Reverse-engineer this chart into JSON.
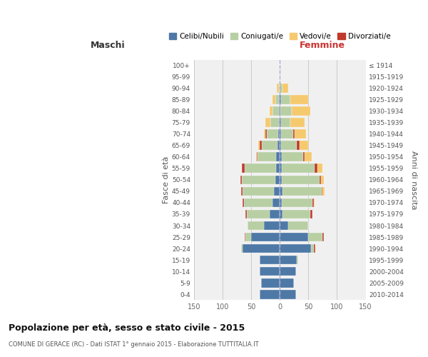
{
  "age_groups": [
    "0-4",
    "5-9",
    "10-14",
    "15-19",
    "20-24",
    "25-29",
    "30-34",
    "35-39",
    "40-44",
    "45-49",
    "50-54",
    "55-59",
    "60-64",
    "65-69",
    "70-74",
    "75-79",
    "80-84",
    "85-89",
    "90-94",
    "95-99",
    "100+"
  ],
  "birth_years": [
    "2010-2014",
    "2005-2009",
    "2000-2004",
    "1995-1999",
    "1990-1994",
    "1985-1989",
    "1980-1984",
    "1975-1979",
    "1970-1974",
    "1965-1969",
    "1960-1964",
    "1955-1959",
    "1950-1954",
    "1945-1949",
    "1940-1944",
    "1935-1939",
    "1930-1934",
    "1925-1929",
    "1920-1924",
    "1915-1919",
    "≤ 1914"
  ],
  "colors": {
    "celibe": "#4e79a7",
    "coniugato": "#b8cfa4",
    "vedovo": "#f5c96e",
    "divorziato": "#c0392b"
  },
  "maschi": {
    "celibe": [
      35,
      33,
      35,
      35,
      65,
      50,
      28,
      18,
      13,
      10,
      8,
      6,
      6,
      4,
      3,
      2,
      1,
      1,
      0,
      0,
      0
    ],
    "coniugato": [
      0,
      0,
      0,
      0,
      2,
      10,
      28,
      40,
      50,
      55,
      58,
      55,
      33,
      28,
      20,
      15,
      12,
      7,
      2,
      0,
      0
    ],
    "vedovo": [
      0,
      0,
      0,
      0,
      0,
      0,
      0,
      0,
      0,
      0,
      0,
      0,
      1,
      2,
      3,
      8,
      5,
      5,
      3,
      0,
      0
    ],
    "divorziato": [
      0,
      0,
      0,
      0,
      0,
      1,
      0,
      2,
      2,
      2,
      3,
      5,
      1,
      3,
      2,
      0,
      0,
      0,
      0,
      0,
      0
    ]
  },
  "femmine": {
    "nubile": [
      28,
      25,
      28,
      30,
      55,
      50,
      15,
      5,
      4,
      5,
      4,
      3,
      3,
      2,
      2,
      2,
      1,
      2,
      0,
      0,
      0
    ],
    "coniugata": [
      0,
      0,
      0,
      2,
      5,
      25,
      35,
      48,
      53,
      68,
      65,
      58,
      38,
      28,
      22,
      16,
      20,
      16,
      5,
      1,
      0
    ],
    "vedova": [
      0,
      0,
      0,
      0,
      0,
      0,
      0,
      0,
      2,
      3,
      5,
      8,
      12,
      15,
      20,
      26,
      32,
      32,
      10,
      0,
      0
    ],
    "divorziata": [
      0,
      0,
      0,
      0,
      2,
      2,
      0,
      4,
      2,
      2,
      3,
      5,
      3,
      5,
      2,
      0,
      0,
      0,
      0,
      0,
      0
    ]
  },
  "xlim": 150,
  "title": "Popolazione per età, sesso e stato civile - 2015",
  "subtitle": "COMUNE DI GERACE (RC) - Dati ISTAT 1° gennaio 2015 - Elaborazione TUTTITALIA.IT",
  "ylabel_left": "Fasce di età",
  "ylabel_right": "Anni di nascita",
  "xlabel_maschi": "Maschi",
  "xlabel_femmine": "Femmine",
  "legend_labels": [
    "Celibi/Nubili",
    "Coniugati/e",
    "Vedovi/e",
    "Divorziati/e"
  ],
  "background_color": "#f0f0f0"
}
